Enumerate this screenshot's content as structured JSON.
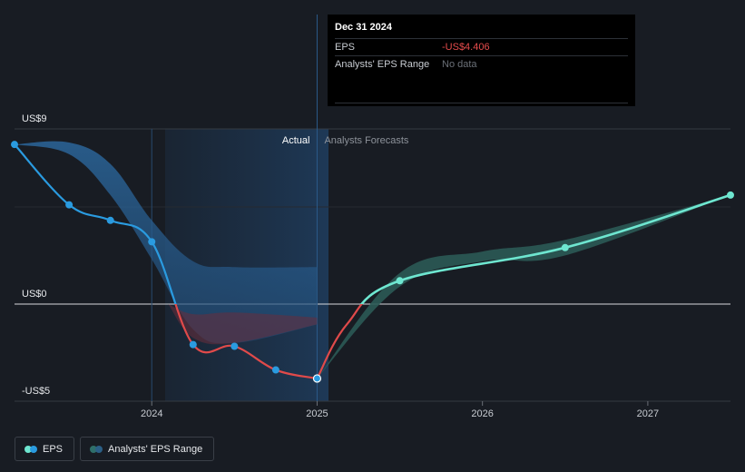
{
  "chart_data": {
    "type": "line",
    "y_ticks": [
      {
        "value": 9,
        "label": "US$9"
      },
      {
        "value": 0,
        "label": "US$0"
      },
      {
        "value": -5,
        "label": "-US$5"
      }
    ],
    "x_ticks": [
      {
        "value": 2024.0,
        "label": "2024"
      },
      {
        "value": 2025.0,
        "label": "2025"
      },
      {
        "value": 2026.0,
        "label": "2026"
      },
      {
        "value": 2027.0,
        "label": "2027"
      }
    ],
    "xlim": [
      2023.17,
      2027.5
    ],
    "ylim": [
      -5.0,
      9.0
    ],
    "actual_label": "Actual",
    "forecast_label": "Analysts Forecasts",
    "series": [
      {
        "name": "EPS",
        "color_positive": "#2a9be0",
        "color_negative": "#e04a4a",
        "x": [
          2023.17,
          2023.5,
          2023.75,
          2024.0,
          2024.25,
          2024.5,
          2024.75,
          2025.0
        ],
        "y": [
          8.2,
          5.1,
          4.3,
          3.2,
          -2.4,
          -2.5,
          -3.9,
          -4.406
        ]
      },
      {
        "name": "EPS Forecast",
        "color": "#6ee6d0",
        "x": [
          2025.0,
          2025.5,
          2026.5,
          2027.5
        ],
        "y": [
          -4.406,
          1.2,
          2.9,
          5.6
        ]
      }
    ],
    "range_band": {
      "name": "Analysts' EPS Range",
      "past": {
        "x": [
          2023.17,
          2023.5,
          2023.75,
          2024.0,
          2024.25,
          2024.5,
          2025.0
        ],
        "upper": [
          8.2,
          8.3,
          7.2,
          4.3,
          2.2,
          1.9,
          1.9
        ],
        "lower": [
          8.2,
          7.7,
          5.6,
          2.3,
          -1.5,
          -2.3,
          -1.2
        ]
      },
      "forecast": {
        "x": [
          2025.0,
          2025.5,
          2026.0,
          2026.5,
          2027.5
        ],
        "upper": [
          -4.406,
          1.6,
          2.7,
          3.3,
          5.6
        ],
        "lower": [
          -4.406,
          0.9,
          2.2,
          2.5,
          5.6
        ]
      }
    }
  },
  "tooltip": {
    "date": "Dec 31 2024",
    "eps_label": "EPS",
    "eps_value": "-US$4.406",
    "range_label": "Analysts' EPS Range",
    "range_value": "No data"
  },
  "legend": {
    "eps_label": "EPS",
    "range_label": "Analysts' EPS Range"
  }
}
